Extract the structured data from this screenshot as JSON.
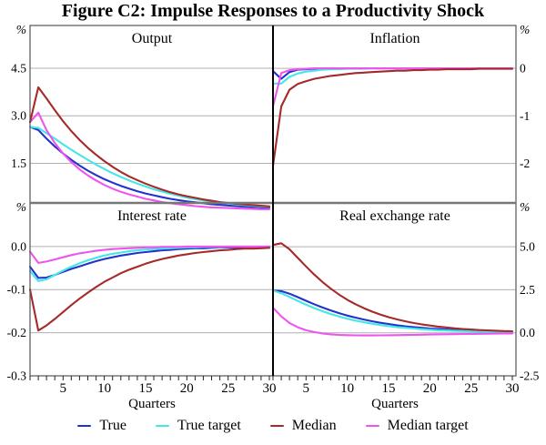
{
  "title": "Figure C2: Impulse Responses to a Productivity Shock",
  "legend": [
    {
      "name": "true",
      "label": "True",
      "color": "#2233cc"
    },
    {
      "name": "true-target",
      "label": "True target",
      "color": "#44e6e6"
    },
    {
      "name": "median",
      "label": "Median",
      "color": "#a52a2a"
    },
    {
      "name": "median-target",
      "label": "Median target",
      "color": "#ee55ee"
    }
  ],
  "colors": {
    "true": "#2233cc",
    "true_target": "#44e6e6",
    "median": "#a52a2a",
    "median_target": "#ee55ee",
    "gridline": "#b0b0b0",
    "outer_border": "#555555",
    "row_divider": "#777777",
    "center_divider": "#000000",
    "tick": "#222222"
  },
  "x_axis": {
    "label": "Quarters",
    "major_ticks": [
      5,
      10,
      15,
      20,
      25,
      30
    ],
    "minor_tick_every": 1,
    "range": [
      1,
      30
    ]
  },
  "chart_data": [
    {
      "type": "line",
      "title": "Output",
      "row": "top",
      "col": "left",
      "unit": "%",
      "axis_side": "left",
      "ylim": [
        0.25,
        5.85
      ],
      "gridlines": [
        4.5,
        3.0,
        1.5
      ],
      "axis_labels": [
        {
          "v": 4.5,
          "t": "4.5"
        },
        {
          "v": 3.0,
          "t": "3.0"
        },
        {
          "v": 1.5,
          "t": "1.5"
        }
      ],
      "x": [
        1,
        2,
        3,
        4,
        5,
        6,
        7,
        8,
        9,
        10,
        11,
        12,
        13,
        14,
        15,
        16,
        17,
        18,
        19,
        20,
        21,
        22,
        23,
        24,
        25,
        26,
        27,
        28,
        29,
        30
      ],
      "series": [
        {
          "name": "true",
          "values": [
            2.65,
            2.55,
            2.28,
            2.03,
            1.81,
            1.61,
            1.43,
            1.27,
            1.13,
            1.0,
            0.89,
            0.79,
            0.7,
            0.62,
            0.55,
            0.49,
            0.43,
            0.38,
            0.34,
            0.3,
            0.27,
            0.24,
            0.21,
            0.19,
            0.17,
            0.15,
            0.13,
            0.12,
            0.11,
            0.1
          ]
        },
        {
          "name": "true_target",
          "values": [
            2.65,
            2.62,
            2.45,
            2.28,
            2.1,
            1.93,
            1.77,
            1.61,
            1.46,
            1.32,
            1.19,
            1.07,
            0.96,
            0.86,
            0.77,
            0.68,
            0.61,
            0.54,
            0.48,
            0.42,
            0.37,
            0.33,
            0.29,
            0.26,
            0.23,
            0.2,
            0.18,
            0.16,
            0.14,
            0.13
          ]
        },
        {
          "name": "median_target",
          "values": [
            2.8,
            3.1,
            2.55,
            2.14,
            1.81,
            1.54,
            1.31,
            1.12,
            0.96,
            0.82,
            0.7,
            0.6,
            0.52,
            0.45,
            0.38,
            0.33,
            0.28,
            0.24,
            0.21,
            0.18,
            0.15,
            0.13,
            0.11,
            0.1,
            0.09,
            0.08,
            0.07,
            0.06,
            0.05,
            0.05
          ]
        },
        {
          "name": "median",
          "values": [
            2.8,
            3.9,
            3.55,
            3.18,
            2.83,
            2.52,
            2.24,
            1.99,
            1.77,
            1.57,
            1.39,
            1.23,
            1.09,
            0.97,
            0.86,
            0.76,
            0.67,
            0.59,
            0.52,
            0.46,
            0.41,
            0.36,
            0.32,
            0.28,
            0.25,
            0.22,
            0.2,
            0.18,
            0.16,
            0.14
          ]
        }
      ]
    },
    {
      "type": "line",
      "title": "Inflation",
      "row": "top",
      "col": "right",
      "unit": "%",
      "axis_side": "right",
      "ylim": [
        -2.83,
        0.9
      ],
      "gridlines": [
        0,
        -1,
        -2
      ],
      "axis_labels": [
        {
          "v": 0,
          "t": "0"
        },
        {
          "v": -1,
          "t": "-1"
        },
        {
          "v": -2,
          "t": "-2"
        }
      ],
      "x": [
        1,
        2,
        3,
        4,
        5,
        6,
        7,
        8,
        9,
        10,
        11,
        12,
        13,
        14,
        15,
        16,
        17,
        18,
        19,
        20,
        21,
        22,
        23,
        24,
        25,
        26,
        27,
        28,
        29,
        30
      ],
      "series": [
        {
          "name": "true",
          "values": [
            -0.06,
            -0.22,
            -0.08,
            -0.03,
            -0.02,
            -0.01,
            -0.01,
            0,
            0,
            0,
            0,
            0,
            0,
            0,
            0,
            0,
            0,
            0,
            0,
            0,
            0,
            0,
            0,
            0,
            0,
            0,
            0,
            0,
            0,
            0
          ]
        },
        {
          "name": "true_target",
          "values": [
            -0.32,
            -0.32,
            -0.18,
            -0.11,
            -0.07,
            -0.05,
            -0.03,
            -0.02,
            -0.02,
            -0.01,
            -0.01,
            -0.01,
            0,
            0,
            0,
            0,
            0,
            0,
            0,
            0,
            0,
            0,
            0,
            0,
            0,
            0,
            0,
            0,
            0,
            0
          ]
        },
        {
          "name": "median_target",
          "values": [
            -0.8,
            -0.1,
            -0.04,
            -0.02,
            -0.01,
            0,
            0,
            0,
            0,
            0,
            0,
            0,
            0,
            0,
            0,
            0,
            0,
            0,
            0,
            0,
            0,
            0,
            0,
            0,
            0,
            0,
            0,
            0,
            0,
            0
          ]
        },
        {
          "name": "median",
          "values": [
            -2.05,
            -0.8,
            -0.45,
            -0.33,
            -0.27,
            -0.22,
            -0.19,
            -0.16,
            -0.14,
            -0.12,
            -0.1,
            -0.09,
            -0.08,
            -0.07,
            -0.06,
            -0.05,
            -0.05,
            -0.04,
            -0.04,
            -0.03,
            -0.03,
            -0.02,
            -0.02,
            -0.02,
            -0.02,
            -0.01,
            -0.01,
            -0.01,
            -0.01,
            -0.01
          ]
        }
      ]
    },
    {
      "type": "line",
      "title": "Interest rate",
      "row": "bottom",
      "col": "left",
      "unit": "%",
      "axis_side": "left",
      "ylim": [
        -0.3,
        0.101
      ],
      "gridlines": [
        0,
        -0.1,
        -0.2
      ],
      "axis_labels": [
        {
          "v": 0,
          "t": "0.0"
        },
        {
          "v": -0.1,
          "t": "-0.1"
        },
        {
          "v": -0.2,
          "t": "-0.2"
        },
        {
          "v": -0.3,
          "t": "-0.3"
        }
      ],
      "x": [
        1,
        2,
        3,
        4,
        5,
        6,
        7,
        8,
        9,
        10,
        11,
        12,
        13,
        14,
        15,
        16,
        17,
        18,
        19,
        20,
        21,
        22,
        23,
        24,
        25,
        26,
        27,
        28,
        29,
        30
      ],
      "series": [
        {
          "name": "true",
          "values": [
            -0.047,
            -0.073,
            -0.072,
            -0.066,
            -0.059,
            -0.052,
            -0.046,
            -0.04,
            -0.034,
            -0.029,
            -0.025,
            -0.021,
            -0.018,
            -0.015,
            -0.013,
            -0.011,
            -0.009,
            -0.008,
            -0.006,
            -0.005,
            -0.004,
            -0.004,
            -0.003,
            -0.002,
            -0.002,
            -0.002,
            -0.001,
            -0.001,
            -0.001,
            0
          ]
        },
        {
          "name": "true_target",
          "values": [
            -0.057,
            -0.08,
            -0.076,
            -0.066,
            -0.056,
            -0.047,
            -0.039,
            -0.032,
            -0.026,
            -0.021,
            -0.017,
            -0.014,
            -0.011,
            -0.009,
            -0.007,
            -0.006,
            -0.005,
            -0.004,
            -0.003,
            -0.002,
            -0.002,
            -0.001,
            -0.001,
            -0.001,
            0,
            0,
            0,
            0,
            0,
            0
          ]
        },
        {
          "name": "median_target",
          "values": [
            -0.012,
            -0.038,
            -0.035,
            -0.03,
            -0.025,
            -0.02,
            -0.016,
            -0.013,
            -0.01,
            -0.008,
            -0.006,
            -0.005,
            -0.004,
            -0.003,
            -0.002,
            -0.002,
            -0.001,
            -0.001,
            -0.001,
            0,
            0,
            0,
            0,
            0,
            0,
            0,
            0,
            0,
            0,
            0
          ]
        },
        {
          "name": "median",
          "values": [
            -0.1,
            -0.195,
            -0.183,
            -0.168,
            -0.152,
            -0.136,
            -0.121,
            -0.107,
            -0.094,
            -0.082,
            -0.072,
            -0.062,
            -0.054,
            -0.047,
            -0.04,
            -0.034,
            -0.029,
            -0.025,
            -0.021,
            -0.018,
            -0.015,
            -0.013,
            -0.011,
            -0.009,
            -0.008,
            -0.006,
            -0.005,
            -0.005,
            -0.004,
            -0.003
          ]
        }
      ]
    },
    {
      "type": "line",
      "title": "Real exchange rate",
      "row": "bottom",
      "col": "right",
      "unit": "%",
      "axis_side": "right",
      "ylim": [
        -2.5,
        7.54
      ],
      "gridlines": [
        5.0,
        2.5,
        0.0
      ],
      "axis_labels": [
        {
          "v": 5.0,
          "t": "5.0"
        },
        {
          "v": 2.5,
          "t": "2.5"
        },
        {
          "v": 0.0,
          "t": "0.0"
        },
        {
          "v": -2.5,
          "t": "-2.5"
        }
      ],
      "x": [
        1,
        2,
        3,
        4,
        5,
        6,
        7,
        8,
        9,
        10,
        11,
        12,
        13,
        14,
        15,
        16,
        17,
        18,
        19,
        20,
        21,
        22,
        23,
        24,
        25,
        26,
        27,
        28,
        29,
        30
      ],
      "series": [
        {
          "name": "true",
          "values": [
            2.45,
            2.42,
            2.27,
            2.07,
            1.86,
            1.66,
            1.47,
            1.3,
            1.14,
            1.0,
            0.88,
            0.77,
            0.67,
            0.58,
            0.51,
            0.44,
            0.38,
            0.33,
            0.29,
            0.25,
            0.22,
            0.19,
            0.16,
            0.14,
            0.12,
            0.11,
            0.09,
            0.08,
            0.07,
            0.06
          ]
        },
        {
          "name": "true_target",
          "values": [
            2.45,
            2.3,
            2.08,
            1.85,
            1.63,
            1.43,
            1.25,
            1.09,
            0.95,
            0.82,
            0.71,
            0.61,
            0.53,
            0.45,
            0.39,
            0.33,
            0.29,
            0.25,
            0.21,
            0.18,
            0.15,
            0.13,
            0.11,
            0.1,
            0.08,
            0.07,
            0.06,
            0.05,
            0.05,
            0.04
          ]
        },
        {
          "name": "median_target",
          "values": [
            1.45,
            0.95,
            0.57,
            0.32,
            0.15,
            0.04,
            -0.04,
            -0.09,
            -0.12,
            -0.14,
            -0.15,
            -0.155,
            -0.155,
            -0.15,
            -0.145,
            -0.14,
            -0.13,
            -0.12,
            -0.11,
            -0.1,
            -0.09,
            -0.085,
            -0.08,
            -0.07,
            -0.065,
            -0.06,
            -0.055,
            -0.05,
            -0.045,
            -0.04
          ]
        },
        {
          "name": "median",
          "values": [
            5.1,
            5.2,
            4.85,
            4.35,
            3.85,
            3.38,
            2.95,
            2.56,
            2.22,
            1.92,
            1.66,
            1.43,
            1.23,
            1.06,
            0.91,
            0.78,
            0.67,
            0.57,
            0.49,
            0.42,
            0.36,
            0.31,
            0.26,
            0.22,
            0.19,
            0.16,
            0.14,
            0.12,
            0.1,
            0.09
          ]
        }
      ]
    }
  ]
}
